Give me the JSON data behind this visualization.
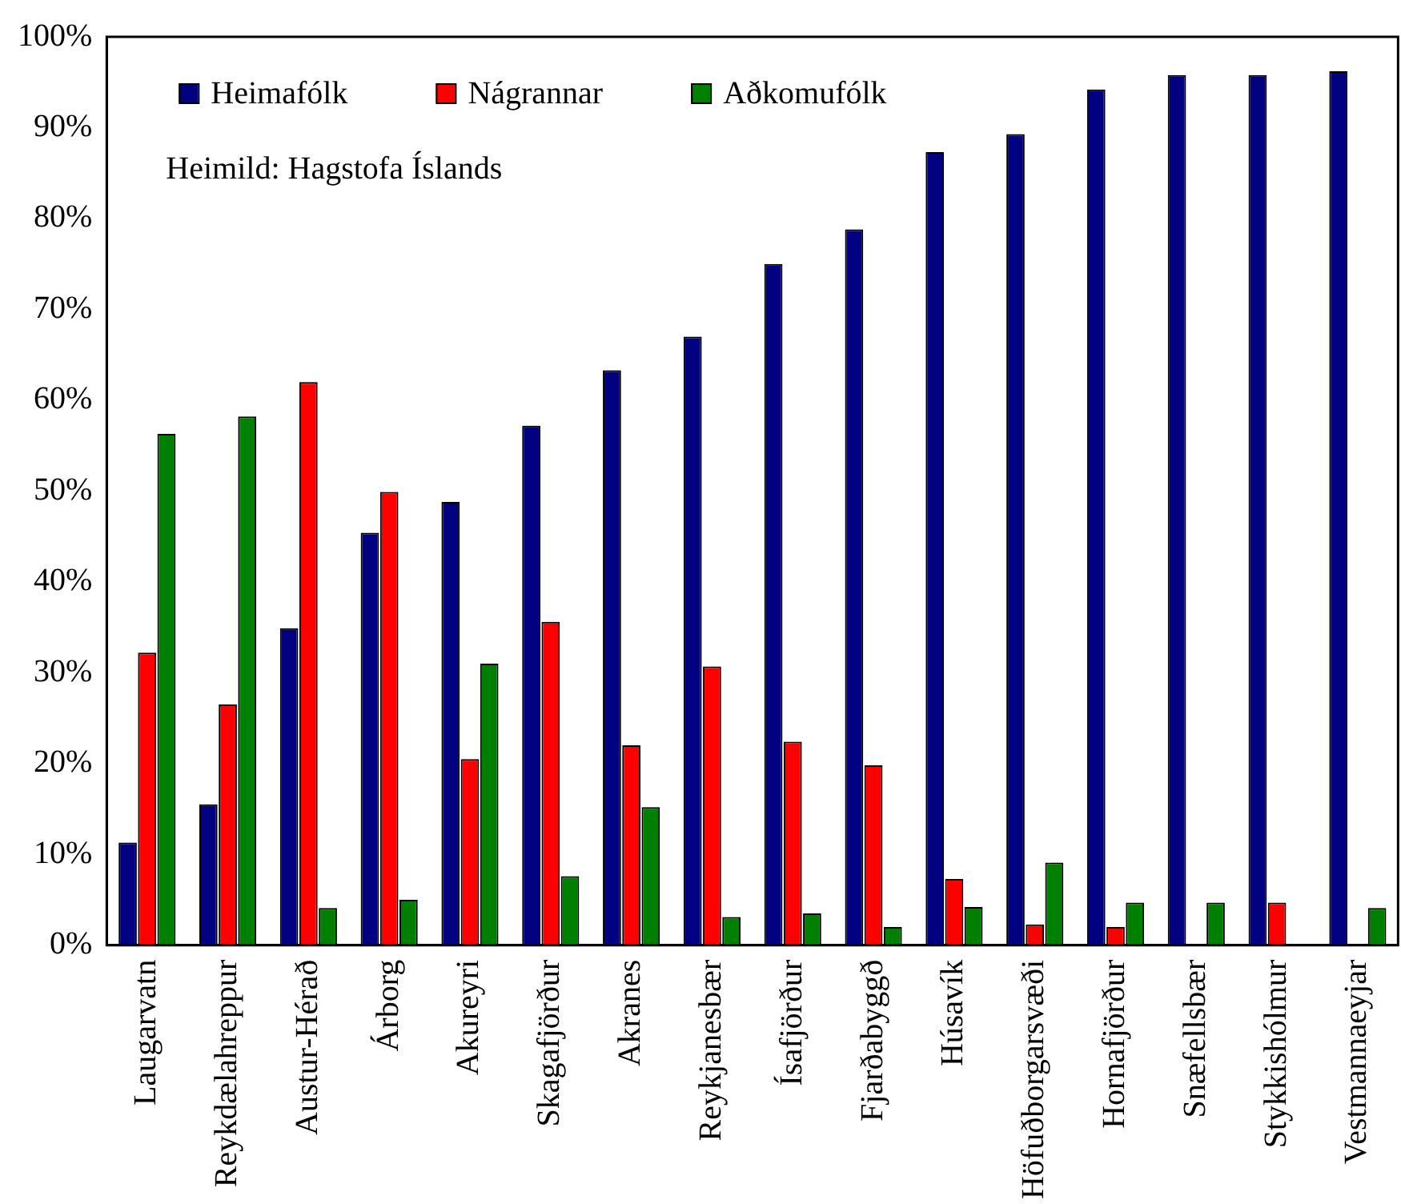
{
  "chart_data": {
    "type": "bar",
    "categories": [
      "Laugarvatn",
      "Reykdælahreppur",
      "Austur-Hérað",
      "Árborg",
      "Akureyri",
      "Skagafjörður",
      "Akranes",
      "Reykjanesbær",
      "Ísafjörður",
      "Fjarðabyggð",
      "Húsavík",
      "Höfuðborgarsvæði",
      "Hornafjörður",
      "Snæfellsbær",
      "Stykkishólmur",
      "Vestmannaeyjar"
    ],
    "series": [
      {
        "name": "Heimafólk",
        "color": "#000080",
        "values": [
          11.3,
          15.5,
          34.9,
          45.4,
          48.8,
          57.2,
          63.3,
          67.0,
          75.0,
          78.8,
          87.3,
          89.3,
          94.2,
          95.8,
          95.8,
          96.2
        ]
      },
      {
        "name": "Nágrannar",
        "color": "#ff0000",
        "values": [
          32.2,
          26.5,
          62.0,
          49.9,
          20.5,
          35.6,
          22.0,
          30.7,
          22.4,
          19.8,
          7.3,
          2.3,
          2.0,
          null,
          4.7,
          null
        ]
      },
      {
        "name": "Aðkomufólk",
        "color": "#008000",
        "values": [
          56.3,
          58.2,
          4.1,
          5.0,
          31.0,
          7.6,
          15.2,
          3.1,
          3.5,
          2.0,
          4.2,
          9.1,
          4.7,
          4.7,
          null,
          4.1
        ]
      }
    ],
    "ylim": [
      0,
      100
    ],
    "yticks": [
      {
        "value": 0,
        "label": "0%"
      },
      {
        "value": 10,
        "label": "10%"
      },
      {
        "value": 20,
        "label": "20%"
      },
      {
        "value": 30,
        "label": "30%"
      },
      {
        "value": 40,
        "label": "40%"
      },
      {
        "value": 50,
        "label": "50%"
      },
      {
        "value": 60,
        "label": "60%"
      },
      {
        "value": 70,
        "label": "70%"
      },
      {
        "value": 80,
        "label": "80%"
      },
      {
        "value": 90,
        "label": "90%"
      },
      {
        "value": 100,
        "label": "100%"
      }
    ],
    "annotations": [
      "Heimild: Hagstofa Íslands"
    ],
    "legend": "top left"
  }
}
